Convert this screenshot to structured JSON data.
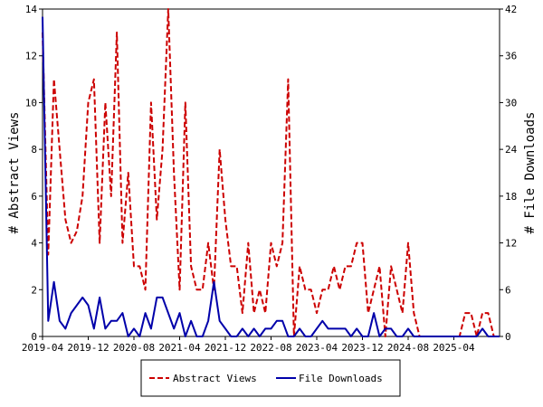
{
  "chart_data": {
    "type": "line",
    "xlabel": "",
    "ylabel_left": "# Abstract Views",
    "ylabel_right": "# File Downloads",
    "ylim_left": [
      0,
      14
    ],
    "ylim_right": [
      0,
      42
    ],
    "yticks_left": [
      0,
      2,
      4,
      6,
      8,
      10,
      12,
      14
    ],
    "yticks_right": [
      0,
      6,
      12,
      18,
      24,
      30,
      36,
      42
    ],
    "xticks": [
      "2019-04",
      "2019-12",
      "2020-08",
      "2021-04",
      "2021-12",
      "2022-08",
      "2023-04",
      "2023-12",
      "2024-08",
      "2025-04"
    ],
    "x_start": "2019-04",
    "x_step": "1 month",
    "series": [
      {
        "name": "Abstract Views",
        "axis": "left",
        "color": "#cc0000",
        "style": "dashed",
        "values": [
          13,
          3.5,
          11,
          8,
          5,
          4,
          4.5,
          6,
          10,
          11,
          4,
          10,
          6,
          13,
          4,
          7,
          3,
          3,
          2,
          10,
          5,
          8,
          14,
          7,
          2,
          10,
          3,
          2,
          2,
          4,
          2,
          8,
          5,
          3,
          3,
          1,
          4,
          1,
          2,
          1,
          4,
          3,
          4,
          11,
          0,
          3,
          2,
          2,
          1,
          2,
          2,
          3,
          2,
          3,
          3,
          4,
          4,
          1,
          2,
          3,
          0,
          3,
          2,
          1,
          4,
          1,
          0,
          0,
          0,
          0,
          0,
          0,
          0,
          0,
          1,
          1,
          0,
          1,
          1,
          0,
          0
        ]
      },
      {
        "name": "File Downloads",
        "axis": "right",
        "color": "#0000aa",
        "style": "solid",
        "values": [
          41,
          2,
          7,
          2,
          1,
          3,
          4,
          5,
          4,
          1,
          5,
          1,
          2,
          2,
          3,
          0,
          1,
          0,
          3,
          1,
          5,
          5,
          3,
          1,
          3,
          0,
          2,
          0,
          0,
          2,
          7,
          2,
          1,
          0,
          0,
          1,
          0,
          1,
          0,
          1,
          1,
          2,
          2,
          0,
          0,
          1,
          0,
          0,
          1,
          2,
          1,
          1,
          1,
          1,
          0,
          1,
          0,
          0,
          3,
          0,
          1,
          1,
          0,
          0,
          1,
          0,
          0,
          0,
          0,
          0,
          0,
          0,
          0,
          0,
          0,
          0,
          0,
          1,
          0,
          0,
          0
        ]
      }
    ],
    "legend": {
      "placement": "bottom-center",
      "entries": [
        "Abstract Views",
        "File Downloads"
      ]
    },
    "grid": false
  }
}
